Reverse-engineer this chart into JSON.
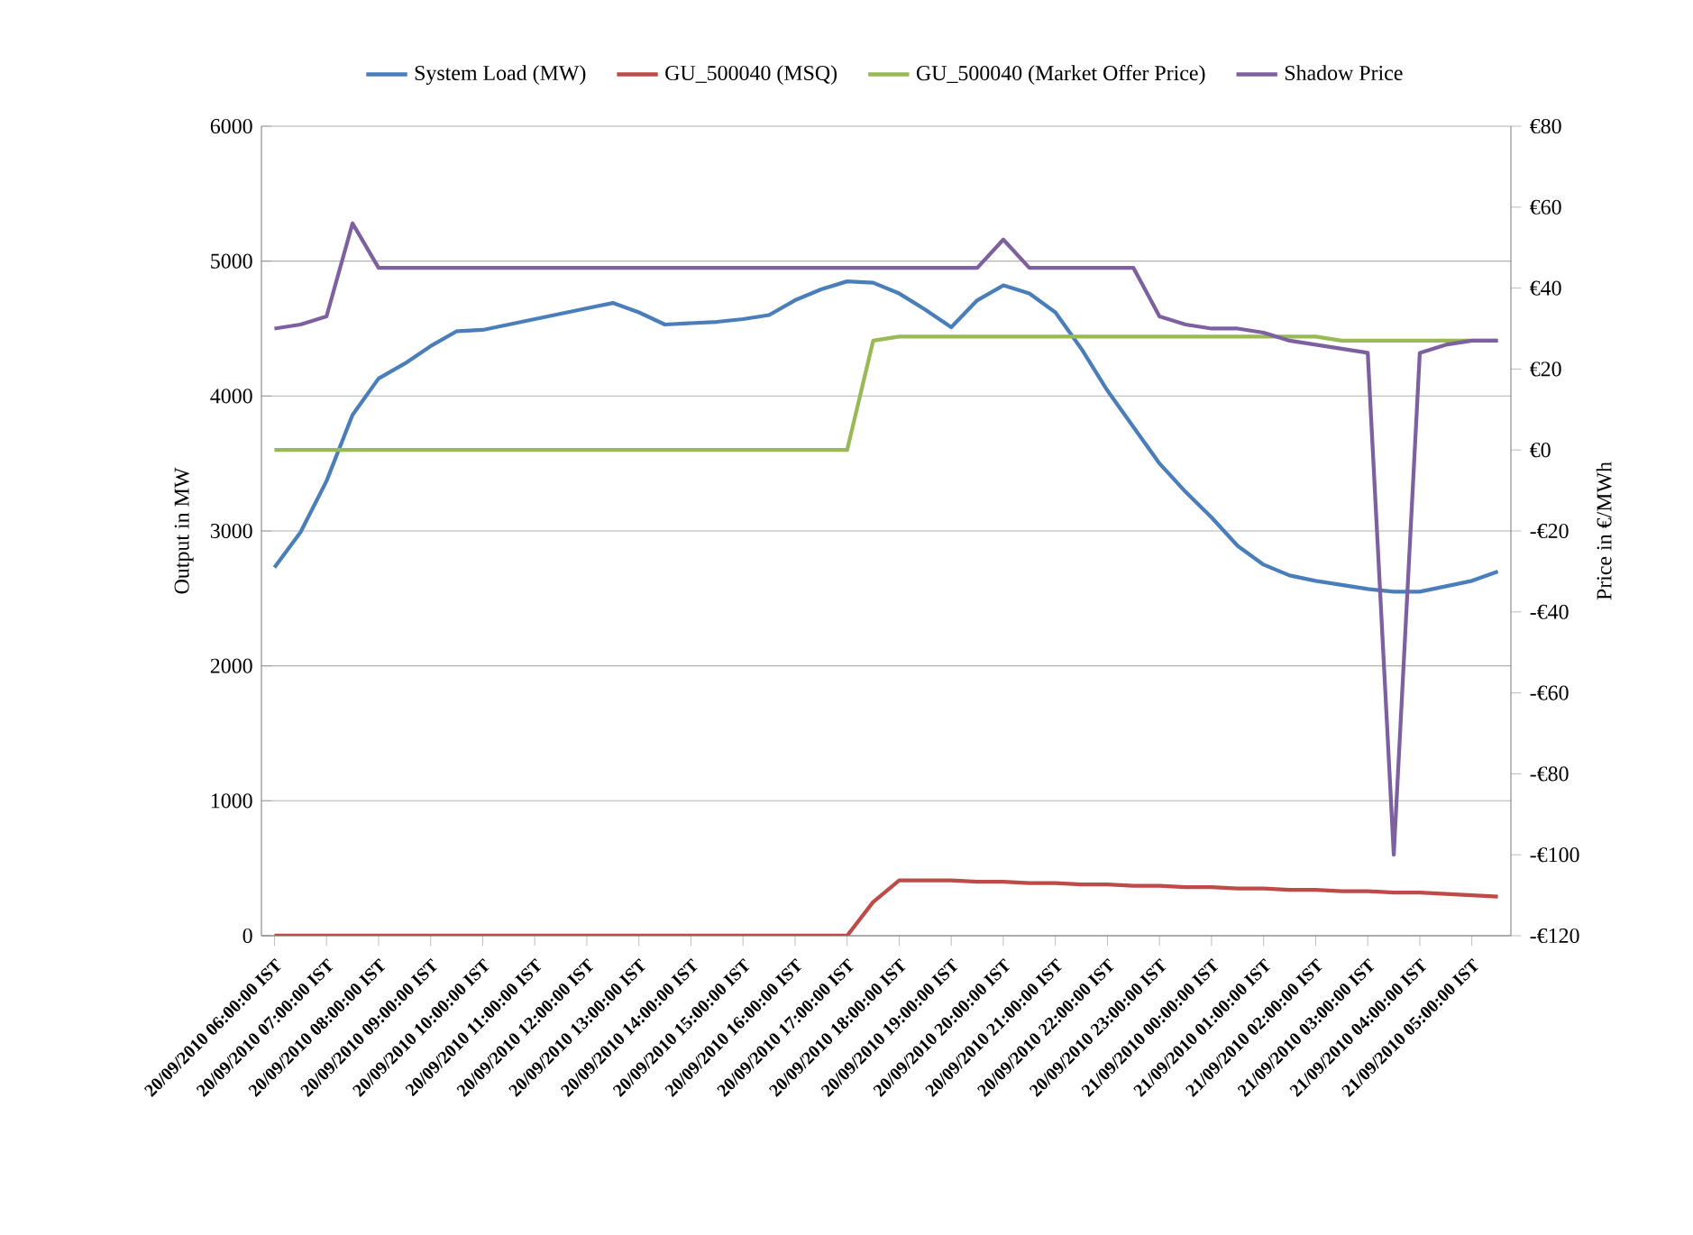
{
  "chart_data": {
    "type": "line",
    "xlabel": null,
    "ylabel": "Output in MW",
    "y2label": "Price in €/MWh",
    "categories": [
      "20/09/2010 06:00:00 IST",
      null,
      "20/09/2010 07:00:00 IST",
      null,
      "20/09/2010 08:00:00 IST",
      null,
      "20/09/2010 09:00:00 IST",
      null,
      "20/09/2010 10:00:00 IST",
      null,
      "20/09/2010 11:00:00 IST",
      null,
      "20/09/2010 12:00:00 IST",
      null,
      "20/09/2010 13:00:00 IST",
      null,
      "20/09/2010 14:00:00 IST",
      null,
      "20/09/2010 15:00:00 IST",
      null,
      "20/09/2010 16:00:00 IST",
      null,
      "20/09/2010 17:00:00 IST",
      null,
      "20/09/2010 18:00:00 IST",
      null,
      "20/09/2010 19:00:00 IST",
      null,
      "20/09/2010 20:00:00 IST",
      null,
      "20/09/2010 21:00:00 IST",
      null,
      "20/09/2010 22:00:00 IST",
      null,
      "20/09/2010 23:00:00 IST",
      null,
      "21/09/2010 00:00:00 IST",
      null,
      "21/09/2010 01:00:00 IST",
      null,
      "21/09/2010 02:00:00 IST",
      null,
      "21/09/2010 03:00:00 IST",
      null,
      "21/09/2010 04:00:00 IST",
      null,
      "21/09/2010 05:00:00 IST",
      null
    ],
    "series": [
      {
        "name": "System Load (MW)",
        "color": "#4a7ebb",
        "values": [
          2730,
          2990,
          3370,
          3860,
          4130,
          4240,
          4370,
          4480,
          4490,
          4530,
          4570,
          4610,
          4650,
          4690,
          4620,
          4530,
          4540,
          4550,
          4570,
          4600,
          4710,
          4790,
          4850,
          4840,
          4760,
          4640,
          4510,
          4710,
          4820,
          4760,
          4620,
          4350,
          4040,
          3770,
          3500,
          3290,
          3100,
          2890,
          2750,
          2670,
          2630,
          2600,
          2570,
          2550,
          2550,
          2590,
          2630,
          2700
        ]
      },
      {
        "name": "GU_500040 (MSQ)",
        "color": "#be4b48",
        "values": [
          0,
          0,
          0,
          0,
          0,
          0,
          0,
          0,
          0,
          0,
          0,
          0,
          0,
          0,
          0,
          0,
          0,
          0,
          0,
          0,
          0,
          0,
          0,
          250,
          410,
          410,
          410,
          400,
          400,
          390,
          390,
          380,
          380,
          370,
          370,
          360,
          360,
          350,
          350,
          340,
          340,
          330,
          330,
          320,
          320,
          310,
          300,
          290
        ]
      },
      {
        "name": "GU_500040 (Market Offer Price)",
        "color": "#98b954",
        "axis": "y2",
        "values": [
          0,
          0,
          0,
          0,
          0,
          0,
          0,
          0,
          0,
          0,
          0,
          0,
          0,
          0,
          0,
          0,
          0,
          0,
          0,
          0,
          0,
          0,
          0,
          27,
          28,
          28,
          28,
          28,
          28,
          28,
          28,
          28,
          28,
          28,
          28,
          28,
          28,
          28,
          28,
          28,
          28,
          27,
          27,
          27,
          27,
          27,
          27,
          27
        ]
      },
      {
        "name": "Shadow Price",
        "color": "#7d60a0",
        "axis": "y2",
        "values": [
          30,
          31,
          33,
          56,
          45,
          45,
          45,
          45,
          45,
          45,
          45,
          45,
          45,
          45,
          45,
          45,
          45,
          45,
          45,
          45,
          45,
          45,
          45,
          45,
          45,
          45,
          45,
          45,
          52,
          45,
          45,
          45,
          45,
          45,
          33,
          31,
          30,
          30,
          29,
          27,
          26,
          25,
          24,
          -100,
          24,
          26,
          27,
          27
        ]
      }
    ],
    "ylim": [
      0,
      6000
    ],
    "yticks": [
      0,
      1000,
      2000,
      3000,
      4000,
      5000,
      6000
    ],
    "y2lim": [
      -120,
      80
    ],
    "y2ticks": [
      {
        "value": -120,
        "label": "-€120"
      },
      {
        "value": -100,
        "label": "-€100"
      },
      {
        "value": -80,
        "label": "-€80"
      },
      {
        "value": -60,
        "label": "-€60"
      },
      {
        "value": -40,
        "label": "-€40"
      },
      {
        "value": -20,
        "label": "-€20"
      },
      {
        "value": 0,
        "label": "€0"
      },
      {
        "value": 20,
        "label": "€20"
      },
      {
        "value": 40,
        "label": "€40"
      },
      {
        "value": 60,
        "label": "€60"
      },
      {
        "value": 80,
        "label": "€80"
      }
    ],
    "grid": "y",
    "legend": "top"
  }
}
